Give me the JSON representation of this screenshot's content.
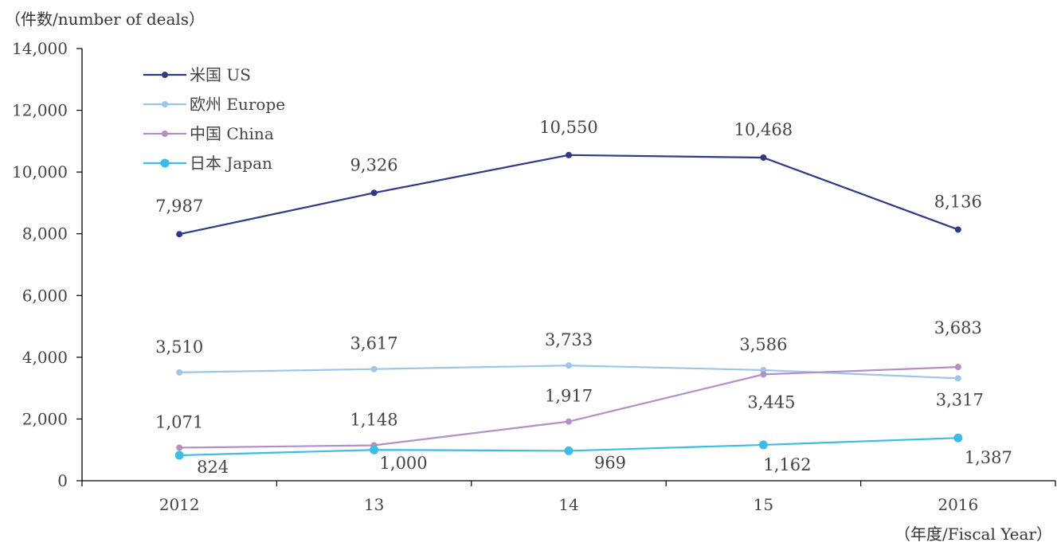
{
  "chart_data": {
    "type": "line",
    "ylabel": "（件数/number of deals）",
    "xlabel": "（年度/Fiscal Year）",
    "categories": [
      "2012",
      "13",
      "14",
      "15",
      "2016"
    ],
    "yticks": [
      "0",
      "2,000",
      "4,000",
      "6,000",
      "8,000",
      "10,000",
      "12,000",
      "14,000"
    ],
    "ylim": [
      0,
      14000
    ],
    "grid": false,
    "legend_position": "top-left",
    "series": [
      {
        "name": "米国 US",
        "color": "#2e3a87",
        "marker": "small",
        "values": [
          7987,
          9326,
          10550,
          10468,
          8136
        ],
        "labels": [
          "7,987",
          "9,326",
          "10,550",
          "10,468",
          "8,136"
        ]
      },
      {
        "name": "欧州 Europe",
        "color": "#9fc5e8",
        "marker": "small",
        "values": [
          3510,
          3617,
          3733,
          3586,
          3317
        ],
        "labels": [
          "3,510",
          "3,617",
          "3,733",
          "3,586",
          "3,317"
        ]
      },
      {
        "name": "中国 China",
        "color": "#b48fc6",
        "marker": "small",
        "values": [
          1071,
          1148,
          1917,
          3445,
          3683
        ],
        "labels": [
          "1,071",
          "1,148",
          "1,917",
          "3,445",
          "3,683"
        ]
      },
      {
        "name": "日本 Japan",
        "color": "#3cbde8",
        "marker": "large",
        "values": [
          824,
          1000,
          969,
          1162,
          1387
        ],
        "labels": [
          "824",
          "1,000",
          "969",
          "1,162",
          "1,387"
        ]
      }
    ]
  }
}
